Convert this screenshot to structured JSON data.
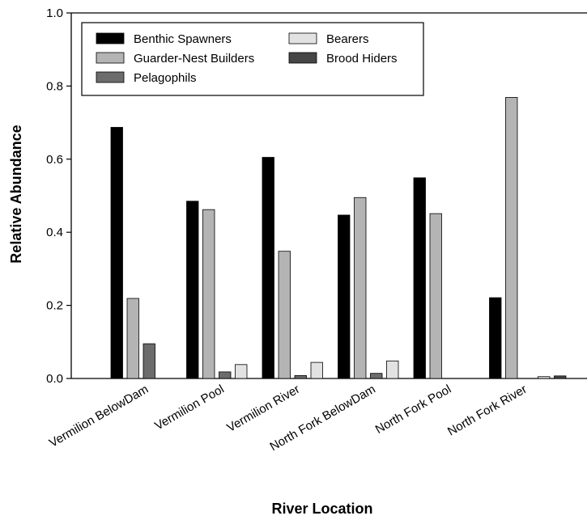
{
  "chart_data": {
    "type": "bar",
    "xlabel": "River Location",
    "ylabel": "Relative Abundance",
    "ylim": [
      0,
      1.0
    ],
    "yticks": [
      "0.0",
      "0.2",
      "0.4",
      "0.6",
      "0.8",
      "1.0"
    ],
    "categories": [
      "Vermilion BelowDam",
      "Vermilion Pool",
      "Vermilion River",
      "North Fork BelowDam",
      "North Fork Pool",
      "North Fork River"
    ],
    "series": [
      {
        "name": "Benthic Spawners",
        "color": "#000000",
        "values": [
          0.687,
          0.485,
          0.605,
          0.447,
          0.549,
          0.221
        ]
      },
      {
        "name": "Guarder-Nest Builders",
        "color": "#b4b4b4",
        "values": [
          0.219,
          0.462,
          0.348,
          0.495,
          0.451,
          0.769
        ]
      },
      {
        "name": "Pelagophils",
        "color": "#6c6c6c",
        "values": [
          0.095,
          0.018,
          0.008,
          0.014,
          0.0,
          0.0
        ]
      },
      {
        "name": "Bearers",
        "color": "#e2e2e2",
        "values": [
          0.0,
          0.038,
          0.044,
          0.048,
          0.0,
          0.005
        ]
      },
      {
        "name": "Brood Hiders",
        "color": "#464646",
        "values": [
          0.0,
          0.0,
          0.0,
          0.0,
          0.0,
          0.007
        ]
      }
    ],
    "legend_placement": "top-left",
    "grid": false
  }
}
